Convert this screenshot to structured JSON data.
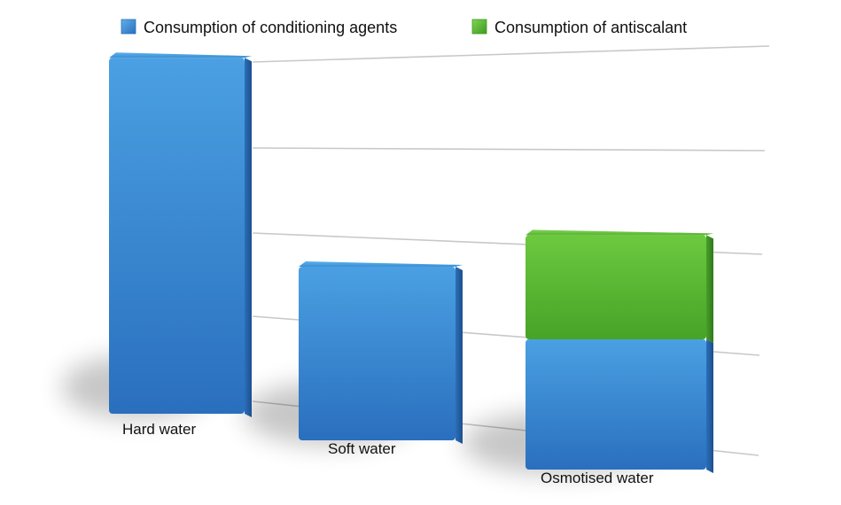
{
  "chart_data": {
    "type": "bar",
    "stacked": true,
    "categories": [
      "Hard water",
      "Soft water",
      "Osmotised water"
    ],
    "series": [
      {
        "name": "Consumption of conditioning agents",
        "values": [
          4.1,
          2.0,
          1.5
        ],
        "color": "#3a8fd6"
      },
      {
        "name": "Consumption of antiscalant",
        "values": [
          0,
          0,
          1.2
        ],
        "color": "#5fb83a"
      }
    ],
    "ylim": [
      0,
      5
    ],
    "grid": true,
    "legend_position": "top",
    "style": "3d-perspective"
  }
}
